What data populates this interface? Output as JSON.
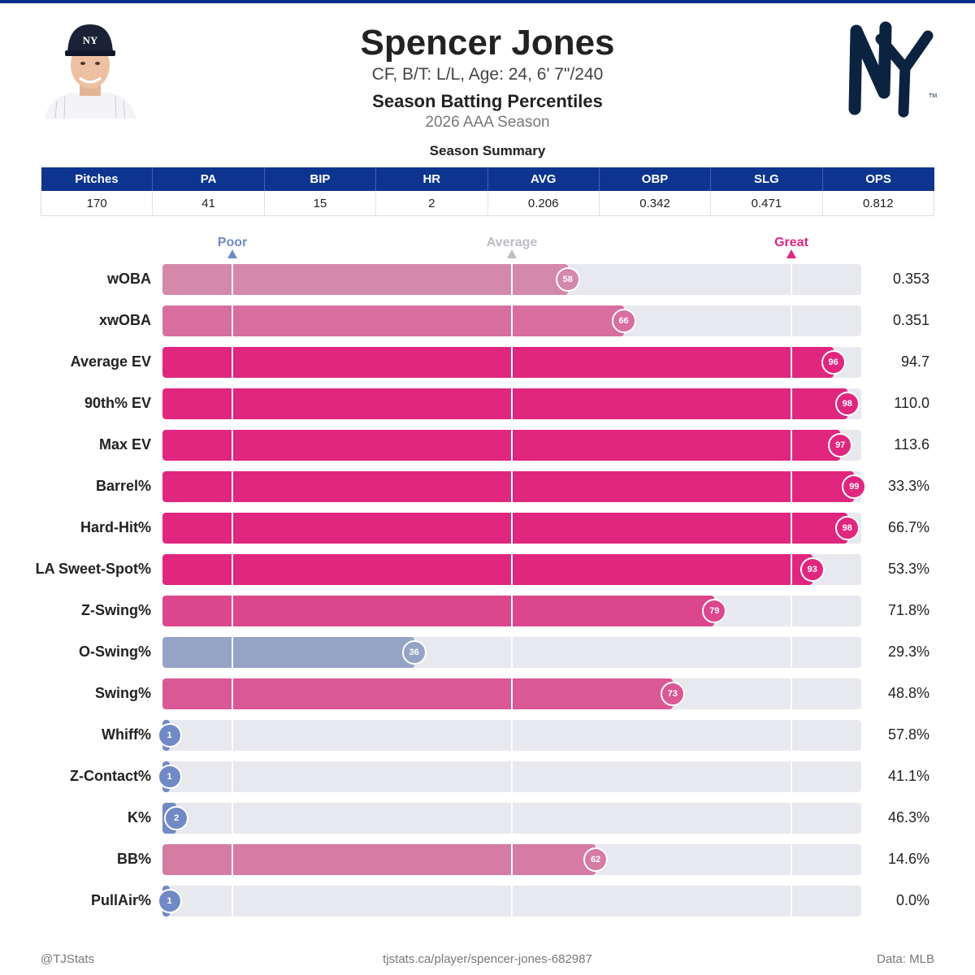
{
  "header": {
    "name": "Spencer Jones",
    "bio": "CF, B/T: L/L, Age: 24, 6' 7\"/240",
    "subtitle": "Season Batting Percentiles",
    "season": "2026 AAA Season",
    "summary_title": "Season Summary"
  },
  "summary": {
    "headers": [
      "Pitches",
      "PA",
      "BIP",
      "HR",
      "AVG",
      "OBP",
      "SLG",
      "OPS"
    ],
    "values": [
      "170",
      "41",
      "15",
      "2",
      "0.206",
      "0.342",
      "0.471",
      "0.812"
    ]
  },
  "scale": {
    "poor": "Poor",
    "average": "Average",
    "great": "Great"
  },
  "colors": {
    "header_blue": "#0d3590",
    "great": "#e0267e",
    "poor": "#6f8ac5",
    "average": "#bdbdc6",
    "track": "#e8e8ef"
  },
  "chart_data": {
    "type": "bar",
    "orientation": "horizontal",
    "xlim": [
      0,
      100
    ],
    "categories": [
      "wOBA",
      "xwOBA",
      "Average EV",
      "90th% EV",
      "Max EV",
      "Barrel%",
      "Hard-Hit%",
      "LA Sweet-Spot%",
      "Z-Swing%",
      "O-Swing%",
      "Swing%",
      "Whiff%",
      "Z-Contact%",
      "K%",
      "BB%",
      "PullAir%"
    ],
    "values": [
      58,
      66,
      96,
      98,
      97,
      99,
      98,
      93,
      79,
      36,
      73,
      1,
      1,
      2,
      62,
      1
    ],
    "stat_values": [
      "0.353",
      "0.351",
      "94.7",
      "110.0",
      "113.6",
      "33.3%",
      "66.7%",
      "53.3%",
      "71.8%",
      "29.3%",
      "48.8%",
      "57.8%",
      "41.1%",
      "46.3%",
      "14.6%",
      "0.0%"
    ],
    "reference_lines": [
      10,
      50,
      90
    ]
  },
  "footer": {
    "left": "@TJStats",
    "center": "tjstats.ca/player/spencer-jones-682987",
    "right": "Data: MLB"
  }
}
